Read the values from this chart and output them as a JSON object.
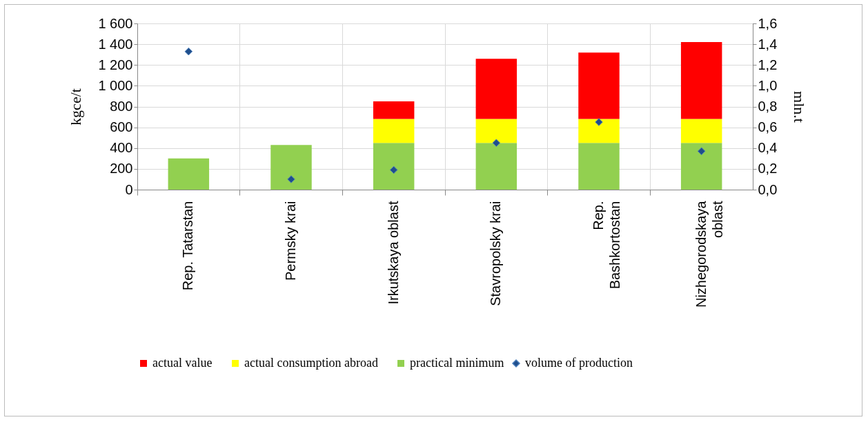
{
  "chart_data": {
    "type": "bar",
    "stacked": true,
    "ylabel": "kgce/t",
    "y2label": "mln.t",
    "categories": [
      "Rep. Tatarstan",
      "Permsky krai",
      "Irkutskaya oblast",
      "Stavropolsky krai",
      "Rep. Bashkortostan",
      "Nizhegorodskaya oblast"
    ],
    "series": [
      {
        "name": "practical minimum",
        "color": "#92d050",
        "values": [
          300,
          430,
          450,
          450,
          450,
          450
        ]
      },
      {
        "name": "actual consumption abroad",
        "color": "#ffff00",
        "values": [
          null,
          null,
          230,
          230,
          230,
          230
        ]
      },
      {
        "name": "actual value",
        "color": "#ff0000",
        "values": [
          null,
          null,
          170,
          580,
          640,
          740
        ]
      },
      {
        "name": "volume of production",
        "type": "scatter",
        "axis": "y2",
        "marker": "diamond",
        "color": "#1f4e8c",
        "values": [
          1.33,
          0.1,
          0.19,
          0.45,
          0.65,
          0.37
        ]
      }
    ],
    "ylim": [
      0,
      1600
    ],
    "yticks": [
      0,
      200,
      400,
      600,
      800,
      {
        "value": 1000,
        "label": "1 000"
      },
      {
        "value": 1200,
        "label": "1 200"
      },
      {
        "value": 1400,
        "label": "1 400"
      },
      {
        "value": 1600,
        "label": "1 600"
      }
    ],
    "y2lim": [
      0,
      1.6
    ],
    "y2ticks": [
      {
        "value": 0,
        "label": "0,0"
      },
      {
        "value": 0.2,
        "label": "0,2"
      },
      {
        "value": 0.4,
        "label": "0,4"
      },
      {
        "value": 0.6,
        "label": "0,6"
      },
      {
        "value": 0.8,
        "label": "0,8"
      },
      {
        "value": 1,
        "label": "1,0"
      },
      {
        "value": 1.2,
        "label": "1,2"
      },
      {
        "value": 1.4,
        "label": "1,4"
      },
      {
        "value": 1.6,
        "label": "1,6"
      }
    ],
    "grid": true,
    "legend": "bottom"
  }
}
